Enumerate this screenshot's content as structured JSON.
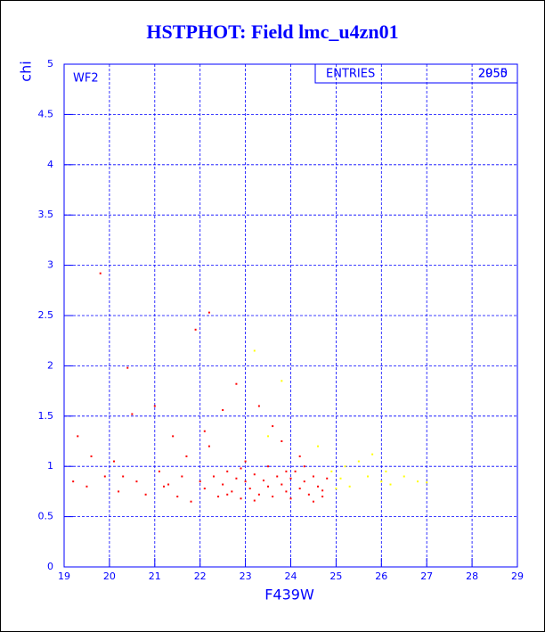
{
  "chart_data": {
    "type": "scatter",
    "title": "HSTPHOT: Field lmc_u4zn01",
    "x_label": "F439W",
    "y_label": "chi",
    "annotation": "WF2",
    "stats": {
      "label": "ENTRIES",
      "values": [
        "2955",
        "2050"
      ]
    },
    "xlim": [
      19,
      29
    ],
    "ylim": [
      0,
      5
    ],
    "xticks": [
      19,
      20,
      21,
      22,
      23,
      24,
      25,
      26,
      27,
      28,
      29
    ],
    "yticks": [
      0,
      0.5,
      1,
      1.5,
      2,
      2.5,
      3,
      3.5,
      4,
      4.5,
      5
    ],
    "grid": true,
    "series": [
      {
        "color": "#ff0000",
        "x": [
          19.2,
          19.3,
          19.5,
          19.6,
          19.8,
          19.9,
          20.1,
          20.2,
          20.4,
          20.5,
          20.6,
          20.8,
          21.0,
          21.1,
          21.2,
          21.4,
          21.5,
          21.6,
          21.7,
          21.8,
          21.9,
          22.0,
          22.1,
          22.2,
          22.2,
          22.3,
          22.4,
          22.5,
          22.5,
          22.6,
          22.7,
          22.8,
          22.8,
          22.9,
          23.0,
          23.0,
          23.1,
          23.2,
          23.3,
          23.3,
          23.4,
          23.5,
          23.5,
          23.6,
          23.7,
          23.8,
          23.8,
          23.9,
          24.0,
          24.0,
          24.1,
          24.2,
          24.2,
          24.3,
          24.4,
          24.5,
          24.5,
          24.6,
          24.7,
          24.8,
          22.1,
          23.6,
          21.3,
          22.9,
          23.9,
          24.3,
          20.3,
          22.6,
          23.2,
          24.7
        ],
        "values": [
          0.85,
          1.3,
          0.8,
          1.1,
          2.92,
          0.9,
          1.05,
          0.75,
          1.98,
          1.52,
          0.85,
          0.72,
          1.6,
          0.95,
          0.8,
          1.3,
          0.7,
          0.9,
          1.1,
          0.65,
          2.36,
          0.85,
          0.78,
          2.53,
          1.2,
          0.9,
          0.7,
          0.82,
          1.56,
          0.95,
          0.75,
          0.88,
          1.82,
          0.68,
          0.85,
          1.05,
          0.78,
          0.92,
          0.72,
          1.6,
          0.86,
          0.8,
          1.0,
          0.7,
          0.9,
          0.82,
          1.25,
          0.75,
          0.88,
          0.68,
          0.95,
          0.78,
          1.1,
          0.85,
          0.72,
          0.9,
          0.65,
          0.8,
          0.76,
          0.88,
          1.35,
          1.4,
          0.82,
          0.98,
          0.95,
          1.0,
          0.9,
          0.72,
          0.66,
          0.7
        ]
      },
      {
        "color": "#ffff00",
        "x": [
          24.9,
          25.1,
          25.3,
          25.5,
          25.7,
          25.8,
          26.0,
          26.2,
          26.5,
          26.8,
          27.0,
          23.8,
          23.2,
          25.2,
          24.6,
          26.1,
          25.0,
          23.5
        ],
        "values": [
          0.95,
          0.88,
          0.8,
          1.05,
          0.9,
          1.12,
          0.85,
          0.82,
          0.9,
          0.85,
          0.84,
          1.85,
          2.15,
          1.0,
          1.2,
          0.95,
          0.78,
          1.3
        ]
      }
    ]
  }
}
